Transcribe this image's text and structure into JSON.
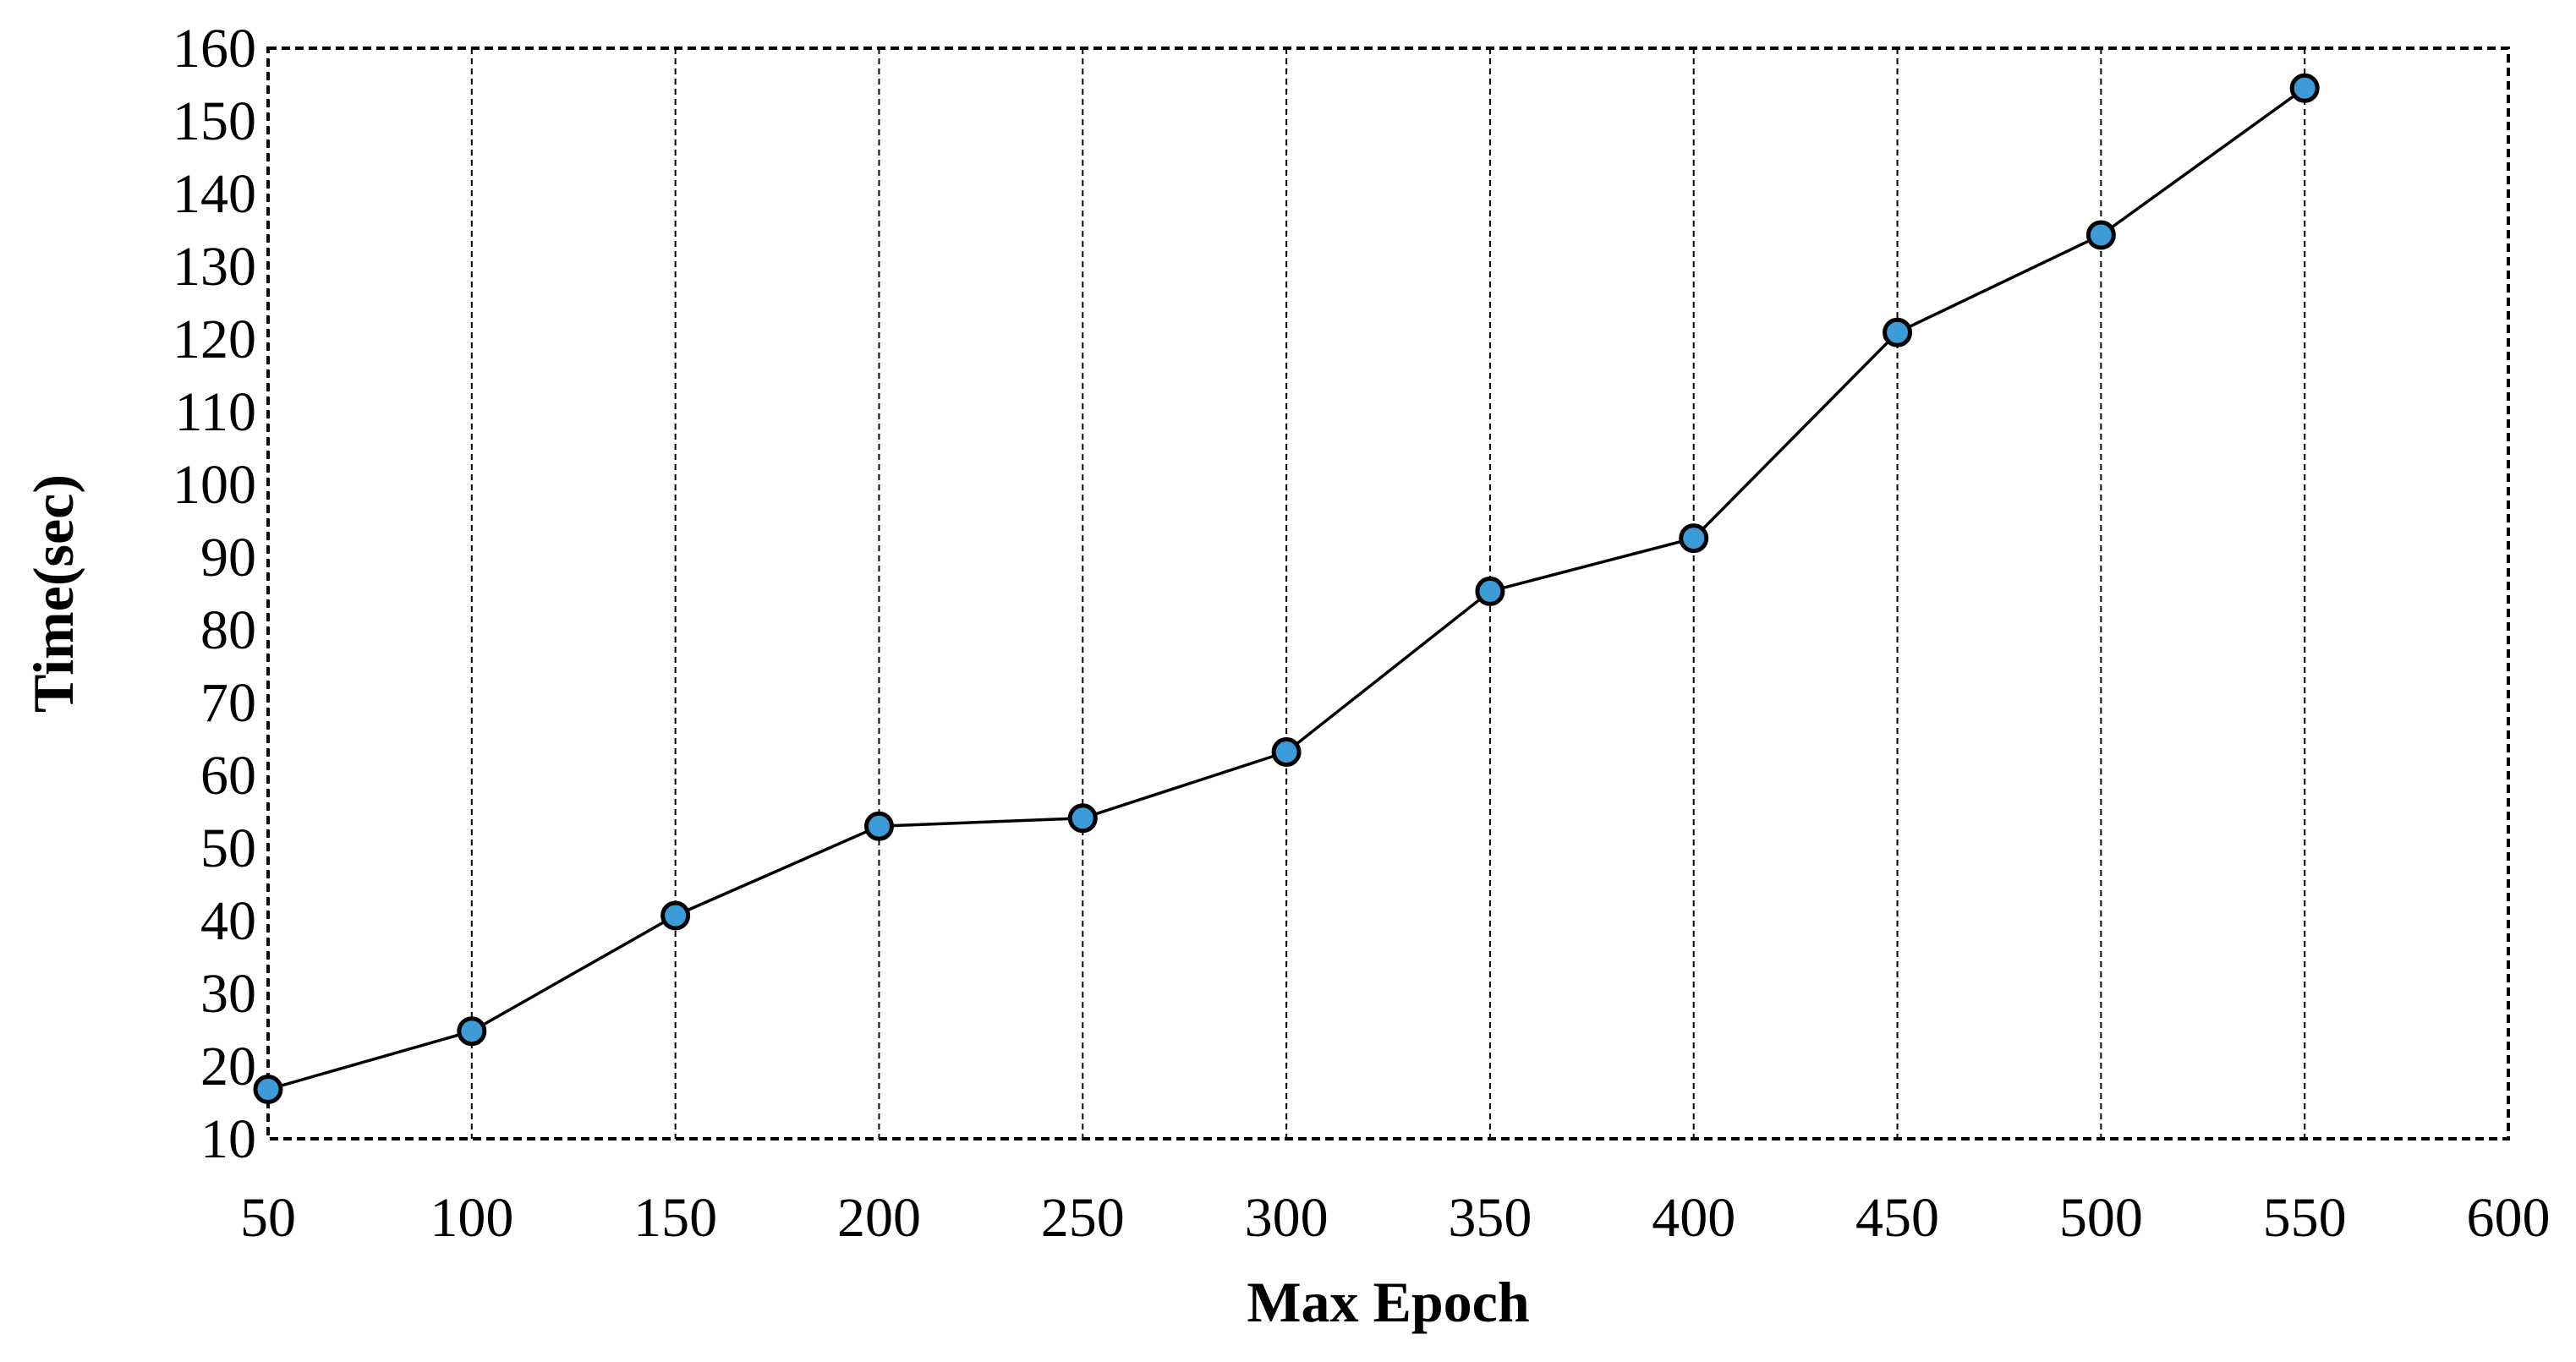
{
  "chart_data": {
    "type": "line",
    "xlabel": "Max Epoch",
    "ylabel": "Time(sec)",
    "xlim": [
      50,
      600
    ],
    "ylim": [
      10,
      160
    ],
    "xticks": [
      "50",
      "100",
      "150",
      "200",
      "250",
      "300",
      "350",
      "400",
      "450",
      "500",
      "550",
      "600"
    ],
    "yticks": [
      "10",
      "20",
      "30",
      "40",
      "50",
      "60",
      "70",
      "80",
      "90",
      "100",
      "110",
      "120",
      "130",
      "140",
      "150",
      "160"
    ],
    "grid": "vertical dashed",
    "series": [
      {
        "x": [
          50,
          100,
          150,
          200,
          250,
          300,
          350,
          400,
          450,
          500,
          550
        ],
        "values": [
          16.8,
          24.8,
          40.7,
          53,
          54.1,
          63.2,
          85.3,
          92.6,
          120.9,
          134.3,
          154.5
        ],
        "marker_color": "#3d9bd7",
        "line_color": "#000000"
      }
    ]
  }
}
